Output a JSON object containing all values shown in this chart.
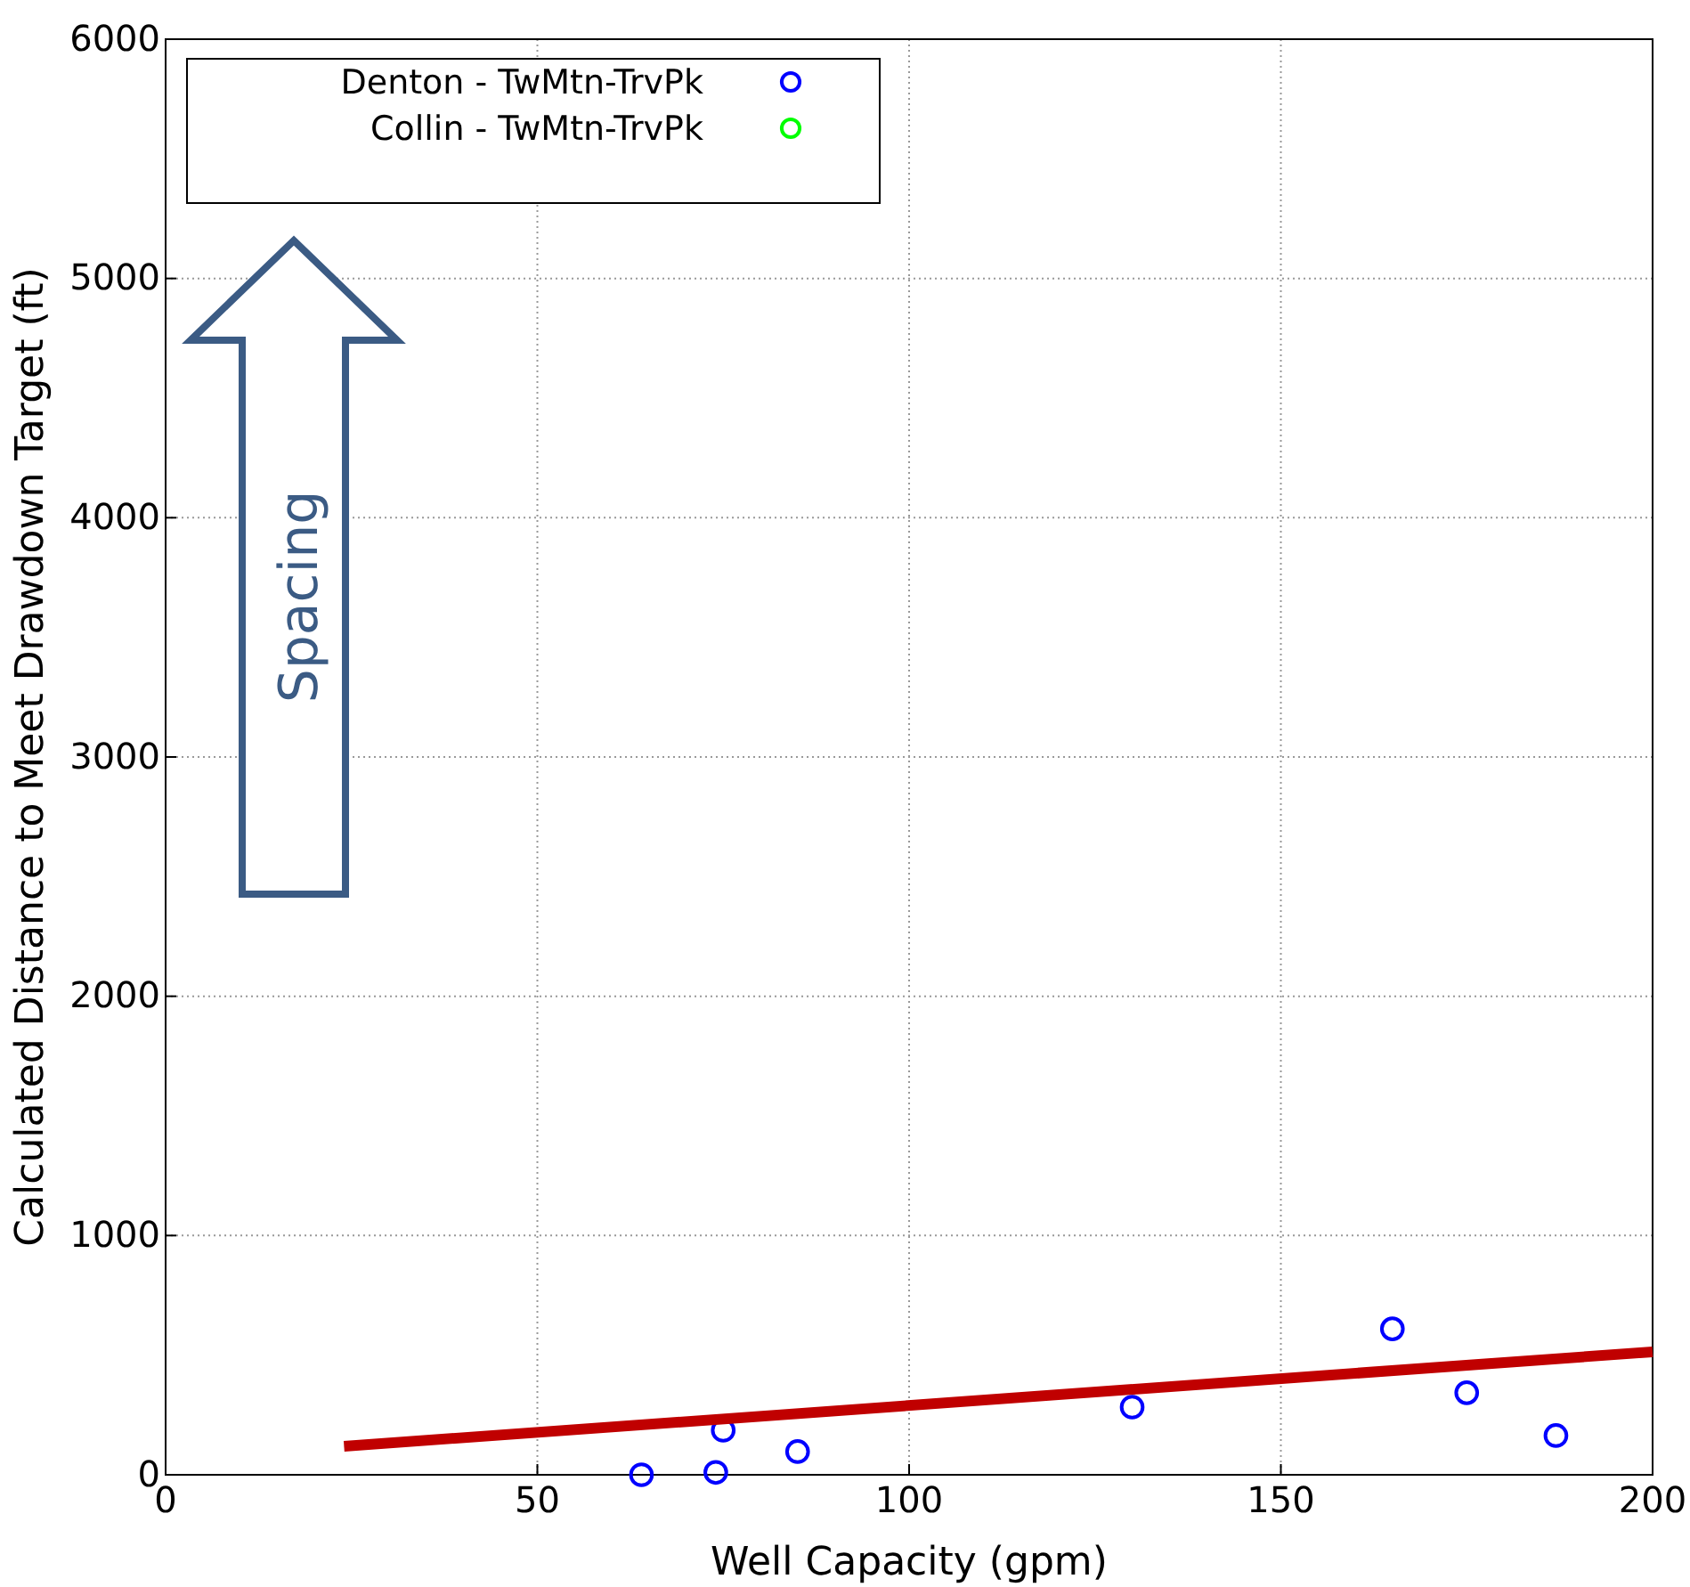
{
  "chart_data": {
    "type": "scatter",
    "xlabel": "Well Capacity (gpm)",
    "ylabel": "Calculated Distance to Meet Drawdown Target (ft)",
    "xlim": [
      0,
      200
    ],
    "xticks": [
      0,
      50,
      100,
      150,
      200
    ],
    "ylim": [
      0,
      6000
    ],
    "yticks": [
      0,
      1000,
      2000,
      3000,
      4000,
      5000,
      6000
    ],
    "grid": true,
    "legend": "top left",
    "marker": "circle",
    "annotations": [
      "Spacing"
    ],
    "series": [
      {
        "name": "Denton - TwMtn-TrvPk",
        "color": "#0000ff",
        "x": [
          64,
          74,
          75,
          85,
          130,
          165,
          175,
          187
        ],
        "values": [
          0,
          10,
          186,
          97,
          283,
          610,
          343,
          164
        ]
      },
      {
        "name": "Collin - TwMtn-TrvPk",
        "color": "#00ff00"
      },
      {
        "type": "line",
        "color": "#c00000",
        "marker": "none",
        "x": [
          24,
          200
        ],
        "values": [
          119,
          514
        ]
      }
    ]
  }
}
